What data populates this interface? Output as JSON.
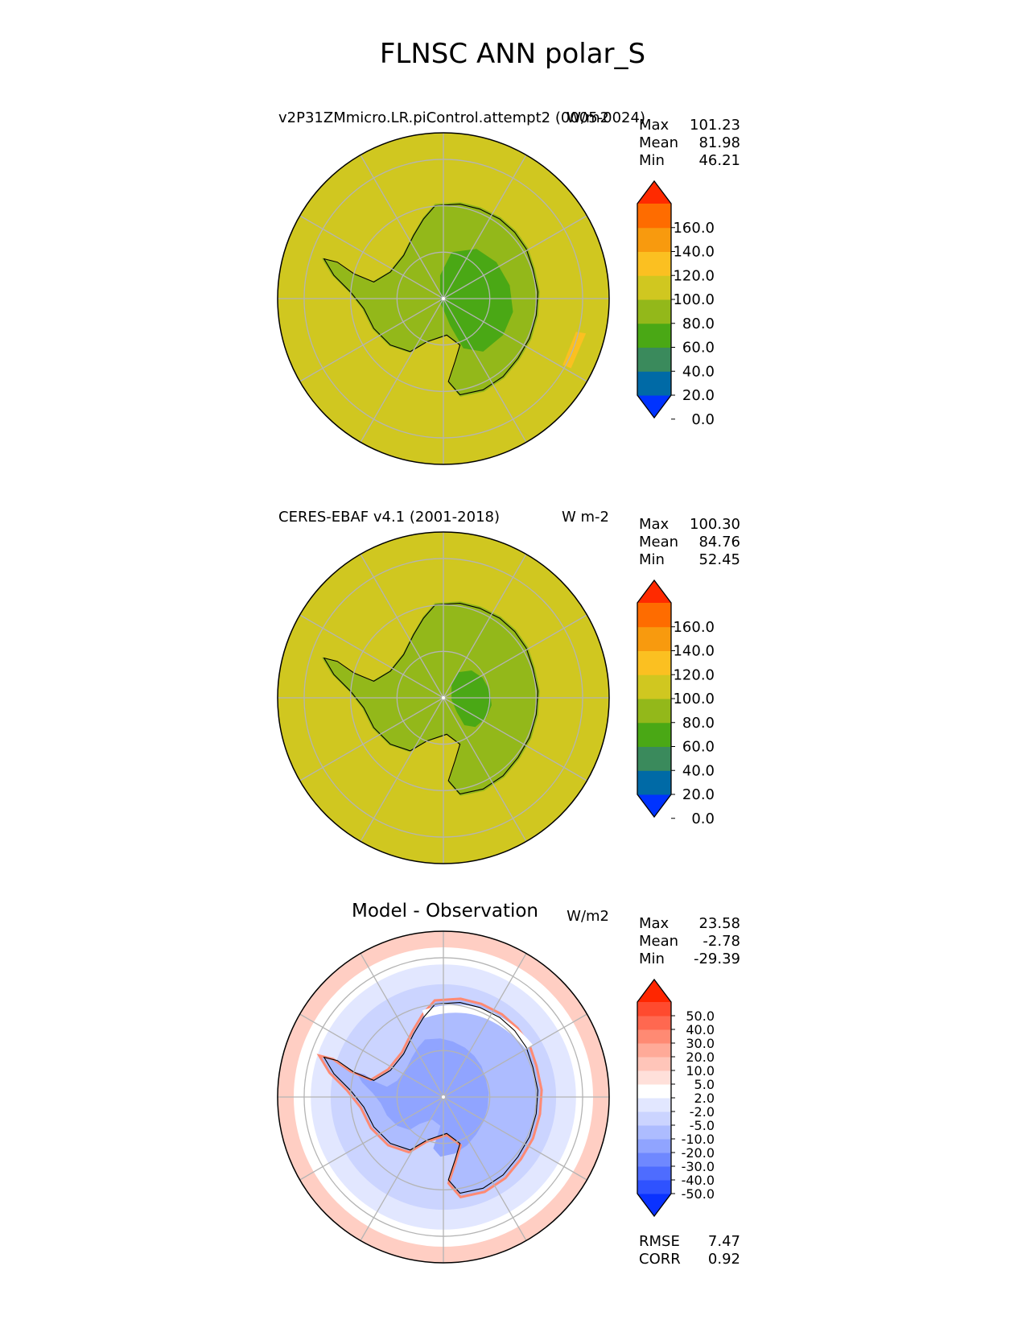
{
  "figure": {
    "title": "FLNSC ANN polar_S"
  },
  "chart_data": [
    {
      "type": "heatmap",
      "panel": "test",
      "title_left": "v2P31ZMmicro.LR.piControl.attempt2 (0005-0024)",
      "units": "W/m2",
      "stats": [
        {
          "label": "Max",
          "value": "101.23"
        },
        {
          "label": "Mean",
          "value": "81.98"
        },
        {
          "label": "Min",
          "value": "46.21"
        }
      ],
      "colorbar": {
        "ticks": [
          "160.0",
          "140.0",
          "120.0",
          "100.0",
          "80.0",
          "60.0",
          "40.0",
          "20.0",
          "0.0"
        ],
        "colors": [
          "#0033ff",
          "#006aa6",
          "#3a8a5c",
          "#4aa815",
          "#93b81a",
          "#d0c720",
          "#fbc021",
          "#f89a0e",
          "#fe6c00",
          "#ff2a00"
        ]
      },
      "projection": "south-polar-stereographic",
      "grid": true
    },
    {
      "type": "heatmap",
      "panel": "reference",
      "title_left": "CERES-EBAF v4.1 (2001-2018)",
      "units": "W m-2",
      "stats": [
        {
          "label": "Max",
          "value": "100.30"
        },
        {
          "label": "Mean",
          "value": "84.76"
        },
        {
          "label": "Min",
          "value": "52.45"
        }
      ],
      "colorbar": {
        "ticks": [
          "160.0",
          "140.0",
          "120.0",
          "100.0",
          "80.0",
          "60.0",
          "40.0",
          "20.0",
          "0.0"
        ],
        "colors": [
          "#0033ff",
          "#006aa6",
          "#3a8a5c",
          "#4aa815",
          "#93b81a",
          "#d0c720",
          "#fbc021",
          "#f89a0e",
          "#fe6c00",
          "#ff2a00"
        ]
      },
      "projection": "south-polar-stereographic",
      "grid": true
    },
    {
      "type": "heatmap",
      "panel": "difference",
      "title_center": "Model - Observation",
      "units": "W/m2",
      "stats": [
        {
          "label": "Max",
          "value": "23.58"
        },
        {
          "label": "Mean",
          "value": "-2.78"
        },
        {
          "label": "Min",
          "value": "-29.39"
        }
      ],
      "extra_stats": [
        {
          "label": "RMSE",
          "value": "7.47"
        },
        {
          "label": "CORR",
          "value": "0.92"
        }
      ],
      "colorbar": {
        "ticks": [
          "50.0",
          "40.0",
          "30.0",
          "20.0",
          "10.0",
          "5.0",
          "2.0",
          "-2.0",
          "-5.0",
          "-10.0",
          "-20.0",
          "-30.0",
          "-40.0",
          "-50.0"
        ],
        "colors": [
          "#0a32ff",
          "#2f52ff",
          "#4e6cff",
          "#6f88ff",
          "#90a4ff",
          "#adbcff",
          "#cbd4ff",
          "#e2e7ff",
          "#ffffff",
          "#ffe0da",
          "#ffc5b9",
          "#ffaa98",
          "#ff8a73",
          "#ff6850",
          "#ff4a2e",
          "#ff2600"
        ]
      },
      "projection": "south-polar-stereographic",
      "grid": true
    }
  ]
}
